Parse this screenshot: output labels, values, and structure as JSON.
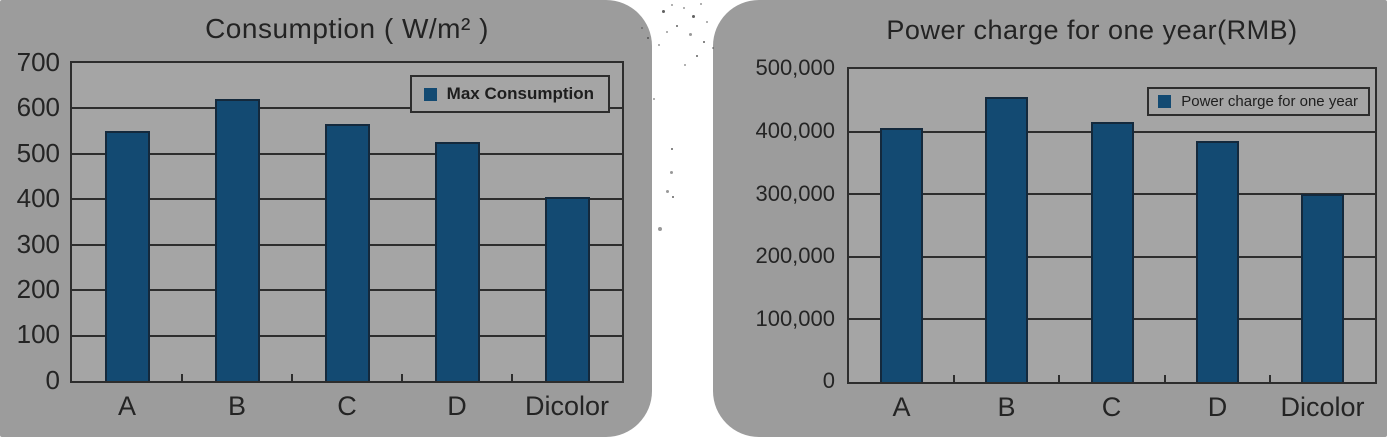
{
  "page": {
    "background_color": "#ffffff",
    "panel_color": "#9c9c9c",
    "plot_background_color": "#a5a5a5",
    "bar_color": "#134a72",
    "line_color": "#2d2d2d",
    "text_color": "#242424"
  },
  "chart_data": [
    {
      "id": "consumption",
      "type": "bar",
      "title": "Consumption ( W/m² )",
      "legend": {
        "label": "Max Consumption",
        "position": "top-right"
      },
      "categories": [
        "A",
        "B",
        "C",
        "D",
        "Dicolor"
      ],
      "series": [
        {
          "name": "Max Consumption",
          "values": [
            550,
            620,
            565,
            525,
            405
          ]
        }
      ],
      "xlabel": "",
      "ylabel": "",
      "ylim": [
        0,
        700
      ],
      "ytick_interval": 100,
      "ytick_labels": [
        "0",
        "100",
        "200",
        "300",
        "400",
        "500",
        "600",
        "700"
      ],
      "grid": true,
      "bar_color": "#134a72"
    },
    {
      "id": "power-charge",
      "type": "bar",
      "title": "Power charge for one year(RMB)",
      "legend": {
        "label": "Power charge for one year",
        "position": "top-right"
      },
      "categories": [
        "A",
        "B",
        "C",
        "D",
        "Dicolor"
      ],
      "series": [
        {
          "name": "Power charge for one year",
          "values": [
            405000,
            455000,
            415000,
            385000,
            300000
          ]
        }
      ],
      "xlabel": "",
      "ylabel": "",
      "ylim": [
        0,
        500000
      ],
      "ytick_interval": 100000,
      "ytick_labels": [
        "0",
        "100,000",
        "200,000",
        "300,000",
        "400,000",
        "500,000"
      ],
      "grid": true,
      "bar_color": "#134a72"
    }
  ]
}
